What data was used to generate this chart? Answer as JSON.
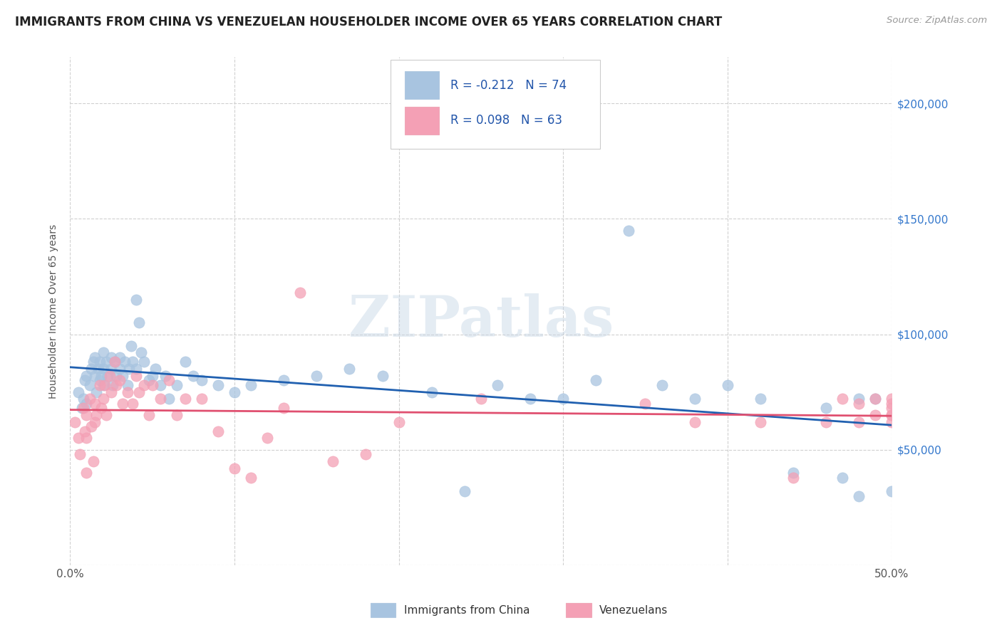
{
  "title": "IMMIGRANTS FROM CHINA VS VENEZUELAN HOUSEHOLDER INCOME OVER 65 YEARS CORRELATION CHART",
  "source": "Source: ZipAtlas.com",
  "ylabel": "Householder Income Over 65 years",
  "xlim": [
    0.0,
    0.5
  ],
  "ylim": [
    0,
    220000
  ],
  "yticks": [
    0,
    50000,
    100000,
    150000,
    200000
  ],
  "ytick_labels": [
    "",
    "$50,000",
    "$100,000",
    "$150,000",
    "$200,000"
  ],
  "xticks": [
    0.0,
    0.1,
    0.2,
    0.3,
    0.4,
    0.5
  ],
  "xtick_labels": [
    "0.0%",
    "",
    "",
    "",
    "",
    "50.0%"
  ],
  "china_R": -0.212,
  "china_N": 74,
  "venezuela_R": 0.098,
  "venezuela_N": 63,
  "china_color": "#a8c4e0",
  "venezuela_color": "#f4a0b5",
  "china_line_color": "#2060b0",
  "venezuela_line_color": "#e05070",
  "watermark": "ZIPatlas",
  "china_x": [
    0.005,
    0.007,
    0.008,
    0.009,
    0.01,
    0.01,
    0.012,
    0.013,
    0.014,
    0.015,
    0.015,
    0.016,
    0.017,
    0.018,
    0.018,
    0.019,
    0.02,
    0.02,
    0.02,
    0.022,
    0.023,
    0.025,
    0.025,
    0.026,
    0.027,
    0.028,
    0.03,
    0.03,
    0.032,
    0.033,
    0.035,
    0.036,
    0.037,
    0.038,
    0.04,
    0.04,
    0.042,
    0.043,
    0.045,
    0.048,
    0.05,
    0.052,
    0.055,
    0.058,
    0.06,
    0.065,
    0.07,
    0.075,
    0.08,
    0.09,
    0.1,
    0.11,
    0.13,
    0.15,
    0.17,
    0.19,
    0.22,
    0.24,
    0.26,
    0.28,
    0.3,
    0.32,
    0.34,
    0.36,
    0.38,
    0.4,
    0.42,
    0.44,
    0.46,
    0.47,
    0.48,
    0.48,
    0.49,
    0.5
  ],
  "china_y": [
    75000,
    68000,
    72000,
    80000,
    82000,
    70000,
    78000,
    85000,
    88000,
    82000,
    90000,
    75000,
    85000,
    88000,
    80000,
    82000,
    85000,
    78000,
    92000,
    88000,
    82000,
    90000,
    85000,
    78000,
    88000,
    82000,
    85000,
    90000,
    82000,
    88000,
    78000,
    85000,
    95000,
    88000,
    85000,
    115000,
    105000,
    92000,
    88000,
    80000,
    82000,
    85000,
    78000,
    82000,
    72000,
    78000,
    88000,
    82000,
    80000,
    78000,
    75000,
    78000,
    80000,
    82000,
    85000,
    82000,
    75000,
    32000,
    78000,
    72000,
    72000,
    80000,
    145000,
    78000,
    72000,
    78000,
    72000,
    40000,
    68000,
    38000,
    30000,
    72000,
    72000,
    32000
  ],
  "venezuela_x": [
    0.003,
    0.005,
    0.006,
    0.008,
    0.009,
    0.01,
    0.01,
    0.01,
    0.012,
    0.013,
    0.014,
    0.015,
    0.015,
    0.016,
    0.018,
    0.019,
    0.02,
    0.021,
    0.022,
    0.024,
    0.025,
    0.027,
    0.028,
    0.03,
    0.032,
    0.035,
    0.038,
    0.04,
    0.042,
    0.045,
    0.048,
    0.05,
    0.055,
    0.06,
    0.065,
    0.07,
    0.08,
    0.09,
    0.1,
    0.11,
    0.12,
    0.13,
    0.14,
    0.16,
    0.18,
    0.2,
    0.25,
    0.35,
    0.38,
    0.42,
    0.44,
    0.46,
    0.47,
    0.48,
    0.48,
    0.49,
    0.49,
    0.5,
    0.5,
    0.5,
    0.5,
    0.5,
    0.5
  ],
  "venezuela_y": [
    62000,
    55000,
    48000,
    68000,
    58000,
    65000,
    55000,
    40000,
    72000,
    60000,
    45000,
    70000,
    62000,
    65000,
    78000,
    68000,
    72000,
    78000,
    65000,
    82000,
    75000,
    88000,
    78000,
    80000,
    70000,
    75000,
    70000,
    82000,
    75000,
    78000,
    65000,
    78000,
    72000,
    80000,
    65000,
    72000,
    72000,
    58000,
    42000,
    38000,
    55000,
    68000,
    118000,
    45000,
    48000,
    62000,
    72000,
    70000,
    62000,
    62000,
    38000,
    62000,
    72000,
    70000,
    62000,
    72000,
    65000,
    72000,
    68000,
    65000,
    62000,
    70000,
    65000
  ],
  "background_color": "#ffffff",
  "grid_color": "#d0d0d0",
  "title_fontsize": 12,
  "axis_label_fontsize": 10,
  "tick_color_y": "#3377cc",
  "tick_color_x": "#555555"
}
